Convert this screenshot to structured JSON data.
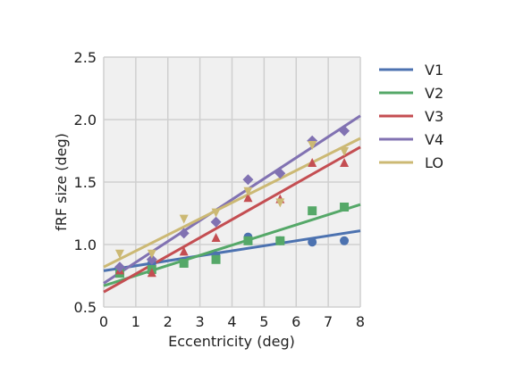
{
  "chart_data": {
    "type": "scatter",
    "xlabel": "Eccentricity (deg)",
    "ylabel": "fRF size (deg)",
    "xlim": [
      0,
      8
    ],
    "ylim": [
      0.5,
      2.5
    ],
    "xticks": [
      "0",
      "1",
      "2",
      "3",
      "4",
      "5",
      "6",
      "7",
      "8"
    ],
    "yticks": [
      "0.5",
      "1.0",
      "1.5",
      "2.0",
      "2.5"
    ],
    "grid": true,
    "legend_position": "right",
    "series": [
      {
        "name": "V1",
        "color": "#4C72B0",
        "marker": "circle",
        "x": [
          0.5,
          1.5,
          2.5,
          3.5,
          4.5,
          5.5,
          6.5,
          7.5
        ],
        "y": [
          0.8,
          0.85,
          0.86,
          0.91,
          1.06,
          1.03,
          1.02,
          1.03
        ],
        "fit": {
          "x": [
            0,
            8
          ],
          "y": [
            0.79,
            1.11
          ]
        }
      },
      {
        "name": "V2",
        "color": "#55A868",
        "marker": "square",
        "x": [
          0.5,
          1.5,
          2.5,
          3.5,
          4.5,
          5.5,
          6.5,
          7.5
        ],
        "y": [
          0.77,
          0.8,
          0.85,
          0.88,
          1.03,
          1.03,
          1.27,
          1.3
        ],
        "fit": {
          "x": [
            0,
            8
          ],
          "y": [
            0.67,
            1.32
          ]
        }
      },
      {
        "name": "V3",
        "color": "#C44E52",
        "marker": "triangle",
        "x": [
          0.5,
          1.5,
          2.5,
          3.5,
          4.5,
          5.5,
          6.5,
          7.5
        ],
        "y": [
          0.79,
          0.77,
          0.94,
          1.05,
          1.37,
          1.36,
          1.65,
          1.65
        ],
        "fit": {
          "x": [
            0,
            8
          ],
          "y": [
            0.62,
            1.78
          ]
        }
      },
      {
        "name": "V4",
        "color": "#8172B2",
        "marker": "diamond",
        "x": [
          0.5,
          1.5,
          2.5,
          3.5,
          4.5,
          5.5,
          6.5,
          7.5
        ],
        "y": [
          0.82,
          0.88,
          1.09,
          1.18,
          1.52,
          1.57,
          1.83,
          1.91
        ],
        "fit": {
          "x": [
            0,
            8
          ],
          "y": [
            0.69,
            2.03
          ]
        }
      },
      {
        "name": "LO",
        "color": "#CCB974",
        "marker": "triangle-down",
        "x": [
          0.5,
          1.5,
          2.5,
          3.5,
          4.5,
          5.5,
          6.5,
          7.5
        ],
        "y": [
          0.93,
          0.93,
          1.21,
          1.26,
          1.43,
          1.34,
          1.8,
          1.75
        ],
        "fit": {
          "x": [
            0,
            8
          ],
          "y": [
            0.82,
            1.85
          ]
        }
      }
    ]
  }
}
